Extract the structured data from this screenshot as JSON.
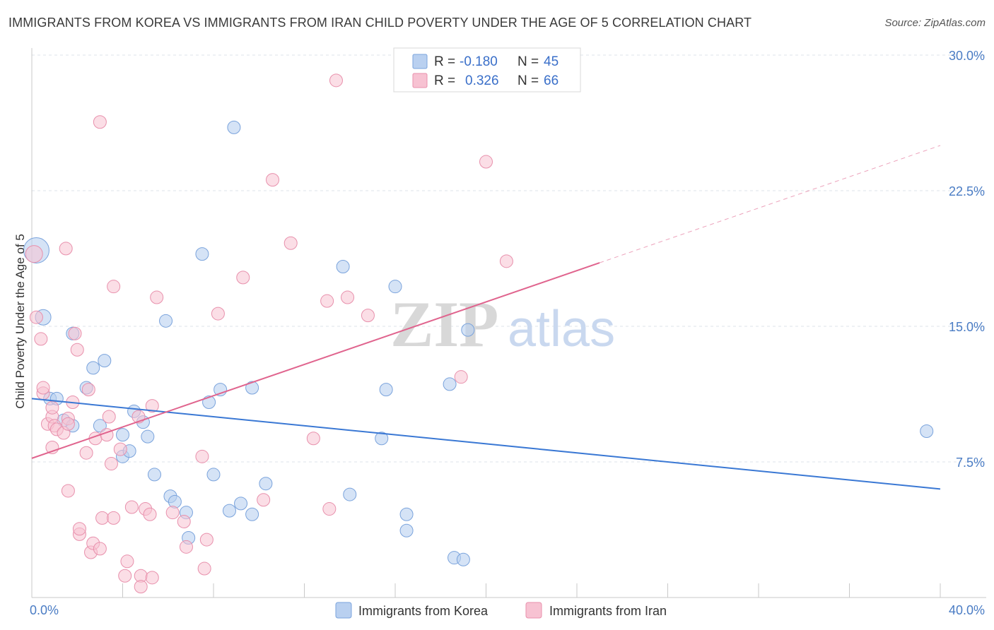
{
  "header": {
    "title": "IMMIGRANTS FROM KOREA VS IMMIGRANTS FROM IRAN CHILD POVERTY UNDER THE AGE OF 5 CORRELATION CHART",
    "source": "Source: ZipAtlas.com"
  },
  "watermark": {
    "zip": "ZIP",
    "atlas": "atlas"
  },
  "legend": {
    "r_label": "R =",
    "n_label": "N =",
    "korea": {
      "r": "-0.180",
      "n": "45"
    },
    "iran": {
      "r": "0.326",
      "n": "66"
    }
  },
  "colors": {
    "korea_fill": "#b9d0f0",
    "korea_stroke": "#7aa3dc",
    "korea_line": "#3a78d4",
    "iran_fill": "#f7c2d2",
    "iran_stroke": "#e890ac",
    "iran_line": "#e0648e",
    "grid": "#dde3ea",
    "tick_label": "#4a7cc4"
  },
  "chart_data": {
    "type": "scatter",
    "title": "IMMIGRANTS FROM KOREA VS IMMIGRANTS FROM IRAN CHILD POVERTY UNDER THE AGE OF 5 CORRELATION CHART",
    "ylabel": "Child Poverty Under the Age of 5",
    "xlabel": "",
    "xlim": [
      0,
      40
    ],
    "ylim": [
      0,
      30
    ],
    "x_tick_labels": [
      "0.0%",
      "40.0%"
    ],
    "y_ticks": [
      7.5,
      15.0,
      22.5,
      30.0
    ],
    "y_tick_labels": [
      "7.5%",
      "15.0%",
      "22.5%",
      "30.0%"
    ],
    "grid": true,
    "legend_position": "top-center",
    "series": [
      {
        "name": "Immigrants from Korea",
        "color": "#b9d0f0",
        "r": -0.18,
        "n": 45,
        "trend": {
          "x": [
            0,
            40
          ],
          "y": [
            11.0,
            6.0
          ],
          "dashed_after": null
        },
        "points": [
          [
            0.2,
            19.2,
            18
          ],
          [
            0.5,
            15.5,
            11
          ],
          [
            0.8,
            11.0,
            9
          ],
          [
            1.1,
            11.0,
            9
          ],
          [
            1.4,
            9.8,
            9
          ],
          [
            1.8,
            9.5,
            9
          ],
          [
            1.8,
            14.6,
            9
          ],
          [
            2.7,
            12.7,
            9
          ],
          [
            2.4,
            11.6,
            9
          ],
          [
            3.2,
            13.1,
            9
          ],
          [
            3.0,
            9.5,
            9
          ],
          [
            4.5,
            10.3,
            9
          ],
          [
            4.0,
            7.8,
            9
          ],
          [
            4.3,
            8.1,
            9
          ],
          [
            4.0,
            9.0,
            9
          ],
          [
            4.9,
            9.7,
            9
          ],
          [
            5.1,
            8.9,
            9
          ],
          [
            5.4,
            6.8,
            9
          ],
          [
            5.9,
            15.3,
            9
          ],
          [
            6.1,
            5.6,
            9
          ],
          [
            6.3,
            5.3,
            9
          ],
          [
            6.8,
            4.7,
            9
          ],
          [
            6.9,
            3.3,
            9
          ],
          [
            7.5,
            19.0,
            9
          ],
          [
            7.8,
            10.8,
            9
          ],
          [
            8.0,
            6.8,
            9
          ],
          [
            8.3,
            11.5,
            9
          ],
          [
            8.7,
            4.8,
            9
          ],
          [
            8.9,
            26.0,
            9
          ],
          [
            9.2,
            5.2,
            9
          ],
          [
            9.7,
            11.6,
            9
          ],
          [
            9.7,
            4.6,
            9
          ],
          [
            10.3,
            6.3,
            9
          ],
          [
            13.7,
            18.3,
            9
          ],
          [
            14.0,
            5.7,
            9
          ],
          [
            15.4,
            8.8,
            9
          ],
          [
            15.6,
            11.5,
            9
          ],
          [
            16.0,
            17.2,
            9
          ],
          [
            16.5,
            4.6,
            9
          ],
          [
            16.5,
            3.7,
            9
          ],
          [
            18.4,
            11.8,
            9
          ],
          [
            18.6,
            2.2,
            9
          ],
          [
            19.0,
            2.1,
            9
          ],
          [
            19.2,
            14.8,
            9
          ],
          [
            39.4,
            9.2,
            9
          ]
        ]
      },
      {
        "name": "Immigrants from Iran",
        "color": "#f7c2d2",
        "r": 0.326,
        "n": 66,
        "trend": {
          "x": [
            0,
            40
          ],
          "y": [
            7.7,
            25.0
          ],
          "solid_until_x": 25
        },
        "points": [
          [
            0.1,
            19.0,
            12
          ],
          [
            0.2,
            15.5,
            9
          ],
          [
            0.4,
            14.3,
            9
          ],
          [
            0.5,
            11.3,
            9
          ],
          [
            0.5,
            11.6,
            9
          ],
          [
            0.7,
            9.6,
            9
          ],
          [
            0.9,
            10.0,
            9
          ],
          [
            0.9,
            8.3,
            9
          ],
          [
            0.9,
            10.5,
            9
          ],
          [
            1.0,
            9.5,
            9
          ],
          [
            1.1,
            9.3,
            9
          ],
          [
            1.4,
            9.1,
            9
          ],
          [
            1.5,
            19.3,
            9
          ],
          [
            1.6,
            9.9,
            9
          ],
          [
            1.6,
            9.6,
            9
          ],
          [
            1.6,
            5.9,
            9
          ],
          [
            1.8,
            10.8,
            9
          ],
          [
            1.9,
            14.6,
            9
          ],
          [
            2.0,
            13.7,
            9
          ],
          [
            2.1,
            3.5,
            9
          ],
          [
            2.1,
            3.8,
            9
          ],
          [
            2.4,
            8.0,
            9
          ],
          [
            2.5,
            11.5,
            9
          ],
          [
            2.6,
            2.5,
            9
          ],
          [
            2.7,
            3.0,
            9
          ],
          [
            2.8,
            8.8,
            9
          ],
          [
            3.0,
            26.3,
            9
          ],
          [
            3.0,
            2.7,
            9
          ],
          [
            3.1,
            4.4,
            9
          ],
          [
            3.3,
            9.0,
            9
          ],
          [
            3.4,
            10.0,
            9
          ],
          [
            3.5,
            7.4,
            9
          ],
          [
            3.6,
            17.2,
            9
          ],
          [
            3.6,
            4.4,
            9
          ],
          [
            3.9,
            8.2,
            9
          ],
          [
            4.1,
            1.2,
            9
          ],
          [
            4.2,
            2.0,
            9
          ],
          [
            4.4,
            5.0,
            9
          ],
          [
            4.7,
            10.0,
            9
          ],
          [
            4.8,
            1.2,
            9
          ],
          [
            4.8,
            0.6,
            9
          ],
          [
            5.0,
            4.9,
            9
          ],
          [
            5.2,
            4.6,
            9
          ],
          [
            5.3,
            1.1,
            9
          ],
          [
            5.3,
            10.6,
            9
          ],
          [
            5.5,
            16.6,
            9
          ],
          [
            6.2,
            4.7,
            9
          ],
          [
            6.7,
            4.2,
            9
          ],
          [
            6.8,
            2.8,
            9
          ],
          [
            7.5,
            7.8,
            9
          ],
          [
            7.6,
            1.6,
            9
          ],
          [
            7.7,
            3.2,
            9
          ],
          [
            8.2,
            15.7,
            9
          ],
          [
            9.3,
            17.7,
            9
          ],
          [
            10.2,
            5.4,
            9
          ],
          [
            10.6,
            23.1,
            9
          ],
          [
            11.4,
            19.6,
            9
          ],
          [
            12.4,
            8.8,
            9
          ],
          [
            13.0,
            16.4,
            9
          ],
          [
            13.1,
            4.9,
            9
          ],
          [
            13.4,
            28.6,
            9
          ],
          [
            13.9,
            16.6,
            9
          ],
          [
            14.8,
            15.6,
            9
          ],
          [
            18.9,
            12.2,
            9
          ],
          [
            20.0,
            24.1,
            9
          ],
          [
            20.9,
            18.6,
            9
          ]
        ]
      }
    ]
  },
  "bottom_legend": {
    "korea_label": "Immigrants from Korea",
    "iran_label": "Immigrants from Iran"
  }
}
